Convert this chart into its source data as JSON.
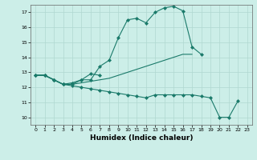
{
  "xlabel": "Humidex (Indice chaleur)",
  "background_color": "#cceee8",
  "grid_color": "#b0d8d0",
  "line_color": "#1a7a6a",
  "xlim": [
    -0.5,
    23.5
  ],
  "ylim": [
    9.5,
    17.5
  ],
  "yticks": [
    10,
    11,
    12,
    13,
    14,
    15,
    16,
    17
  ],
  "xticks": [
    0,
    1,
    2,
    3,
    4,
    5,
    6,
    7,
    8,
    9,
    10,
    11,
    12,
    13,
    14,
    15,
    16,
    17,
    18,
    19,
    20,
    21,
    22,
    23
  ],
  "lines": [
    {
      "x": [
        0,
        1,
        2,
        3,
        4,
        5,
        6,
        7,
        8,
        9,
        10,
        11,
        12,
        13,
        14,
        15,
        16,
        17,
        18
      ],
      "y": [
        12.8,
        12.8,
        12.5,
        12.2,
        12.2,
        12.5,
        12.5,
        13.4,
        13.8,
        15.3,
        16.5,
        16.6,
        16.3,
        17.0,
        17.3,
        17.4,
        17.1,
        14.7,
        14.2
      ],
      "has_markers": true,
      "marker": "D",
      "markersize": 2.0
    },
    {
      "x": [
        0,
        1,
        2,
        3,
        4,
        5,
        6,
        7
      ],
      "y": [
        12.8,
        12.8,
        12.5,
        12.2,
        12.3,
        12.5,
        12.9,
        12.8
      ],
      "has_markers": true,
      "marker": "D",
      "markersize": 2.0
    },
    {
      "x": [
        0,
        1,
        2,
        3,
        4,
        5,
        6,
        7,
        8,
        9,
        10,
        11,
        12,
        13,
        14,
        15,
        16,
        17
      ],
      "y": [
        12.8,
        12.8,
        12.5,
        12.2,
        12.2,
        12.3,
        12.4,
        12.5,
        12.6,
        12.8,
        13.0,
        13.2,
        13.4,
        13.6,
        13.8,
        14.0,
        14.2,
        14.2
      ],
      "has_markers": false,
      "marker": null,
      "markersize": 0
    },
    {
      "x": [
        0,
        1,
        2,
        3,
        4,
        5,
        6,
        7,
        8,
        9,
        10,
        11,
        12,
        13,
        14,
        15,
        16,
        17,
        18,
        19,
        20,
        21,
        22
      ],
      "y": [
        12.8,
        12.8,
        12.5,
        12.2,
        12.1,
        12.0,
        11.9,
        11.8,
        11.7,
        11.6,
        11.5,
        11.4,
        11.3,
        11.5,
        11.5,
        11.5,
        11.5,
        11.5,
        11.4,
        11.3,
        10.0,
        10.0,
        11.1
      ],
      "has_markers": true,
      "marker": "D",
      "markersize": 2.0
    }
  ]
}
